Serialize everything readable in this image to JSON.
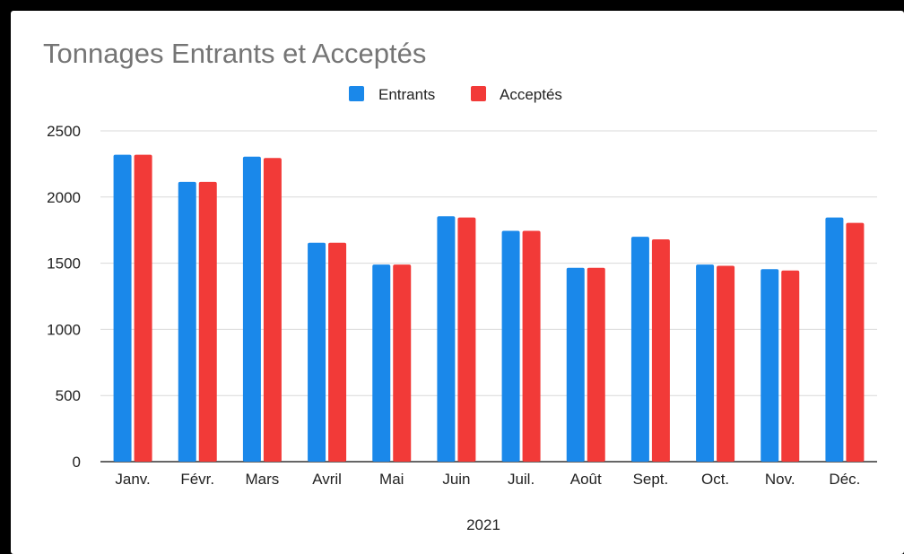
{
  "chart_data": {
    "type": "bar",
    "title": "Tonnages Entrants et Acceptés",
    "xlabel": "2021",
    "ylabel": "",
    "ylim": [
      0,
      2500
    ],
    "yticks": [
      0,
      500,
      1000,
      1500,
      2000,
      2500
    ],
    "grid": true,
    "legend_position": "top-center",
    "categories": [
      "Janv.",
      "Févr.",
      "Mars",
      "Avril",
      "Mai",
      "Juin",
      "Juil.",
      "Août",
      "Sept.",
      "Oct.",
      "Nov.",
      "Déc."
    ],
    "series": [
      {
        "name": "Entrants",
        "color": "#1a88ea",
        "values": [
          2320,
          2115,
          2305,
          1655,
          1490,
          1855,
          1745,
          1465,
          1700,
          1490,
          1455,
          1845
        ]
      },
      {
        "name": "Acceptés",
        "color": "#f23a38",
        "values": [
          2320,
          2115,
          2295,
          1655,
          1490,
          1845,
          1745,
          1465,
          1680,
          1480,
          1445,
          1805
        ]
      }
    ]
  }
}
